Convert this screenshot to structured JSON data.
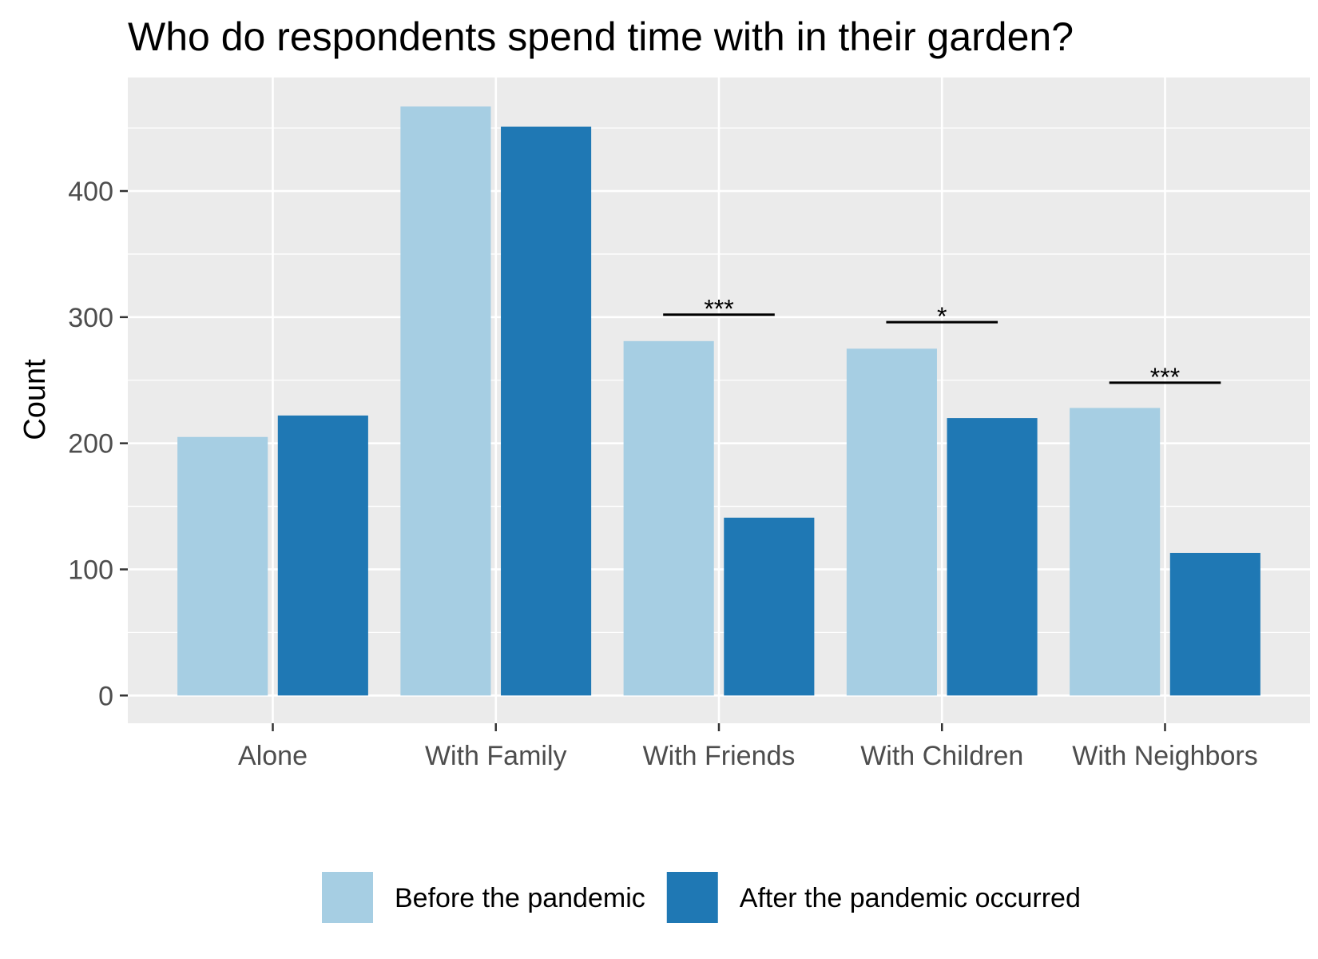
{
  "chart_data": {
    "type": "bar",
    "title": "Who do respondents spend time with in their garden?",
    "xlabel": "",
    "ylabel": "Count",
    "categories": [
      "Alone",
      "With Family",
      "With Friends",
      "With Children",
      "With Neighbors"
    ],
    "series": [
      {
        "name": "Before the pandemic",
        "color": "#a6cee3",
        "values": [
          205,
          467,
          281,
          275,
          228
        ]
      },
      {
        "name": "After the pandemic occurred",
        "color": "#1f78b4",
        "values": [
          222,
          451,
          141,
          220,
          113
        ]
      }
    ],
    "ylim": [
      -22,
      490
    ],
    "yticks": [
      0,
      100,
      200,
      300,
      400
    ],
    "grid": true,
    "legend_position": "bottom",
    "annotations": [
      {
        "category": "With Friends",
        "label": "***",
        "y": 302
      },
      {
        "category": "With Children",
        "label": "*",
        "y": 296
      },
      {
        "category": "With Neighbors",
        "label": "***",
        "y": 248
      }
    ]
  }
}
